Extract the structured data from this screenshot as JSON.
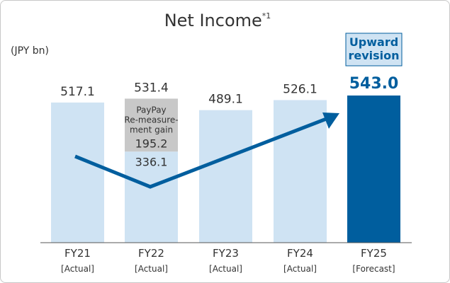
{
  "chart_data": {
    "type": "bar",
    "title": "Net Income",
    "title_note": "*1",
    "unit_label": "(JPY bn)",
    "categories": [
      "FY21",
      "FY22",
      "FY23",
      "FY24",
      "FY25"
    ],
    "sublabels": [
      "[Actual]",
      "[Actual]",
      "[Actual]",
      "[Actual]",
      "[Forecast]"
    ],
    "values": [
      517.1,
      531.4,
      489.1,
      526.1,
      543.0
    ],
    "value_labels": [
      "517.1",
      "531.4",
      "489.1",
      "526.1",
      "543.0"
    ],
    "segments": {
      "category": "FY22",
      "base": 336.1,
      "base_label": "336.1",
      "gain": 195.2,
      "gain_label": "195.2",
      "gain_text": [
        "PayPay",
        "Re-measure-",
        "ment gain"
      ]
    },
    "badge": "Upward revision",
    "badge_lines": [
      "Upward",
      "revision"
    ],
    "ylim": [
      0,
      543.0
    ],
    "colors": {
      "actual": "#cfe3f3",
      "forecast": "#005e9e",
      "gain": "#c8c8c8",
      "arrow": "#005e9e",
      "text": "#333333"
    }
  }
}
